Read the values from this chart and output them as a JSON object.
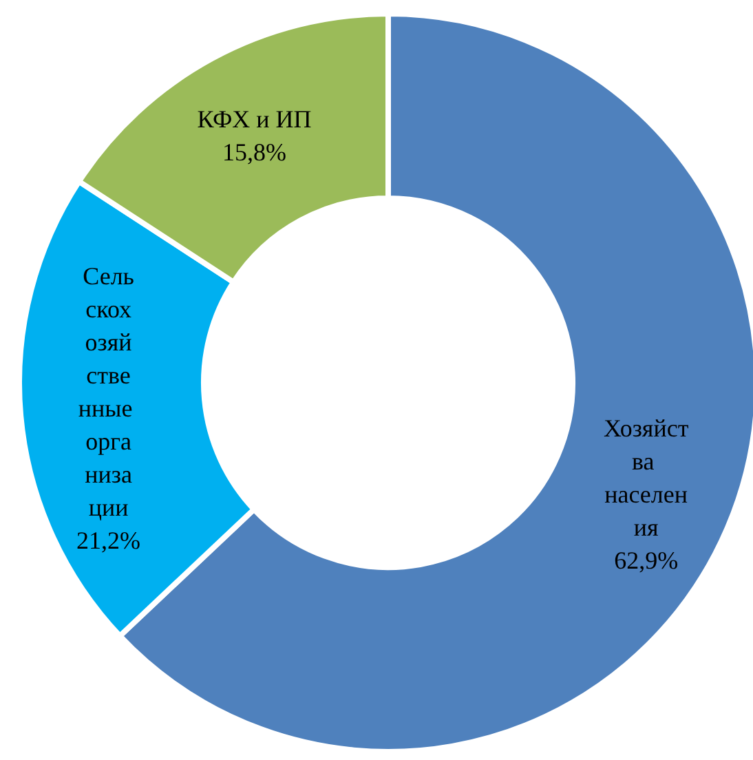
{
  "chart_data": {
    "type": "donut",
    "categories": [
      "Хозяйства населения",
      "Сельскохозяйственные организации",
      "КФХ и ИП"
    ],
    "values": [
      62.9,
      21.2,
      15.8
    ],
    "value_labels": [
      "62,9%",
      "21,2%",
      "15,8%"
    ],
    "colors": [
      "#4f81bd",
      "#00b0f0",
      "#9bbb59"
    ],
    "legend": false
  }
}
